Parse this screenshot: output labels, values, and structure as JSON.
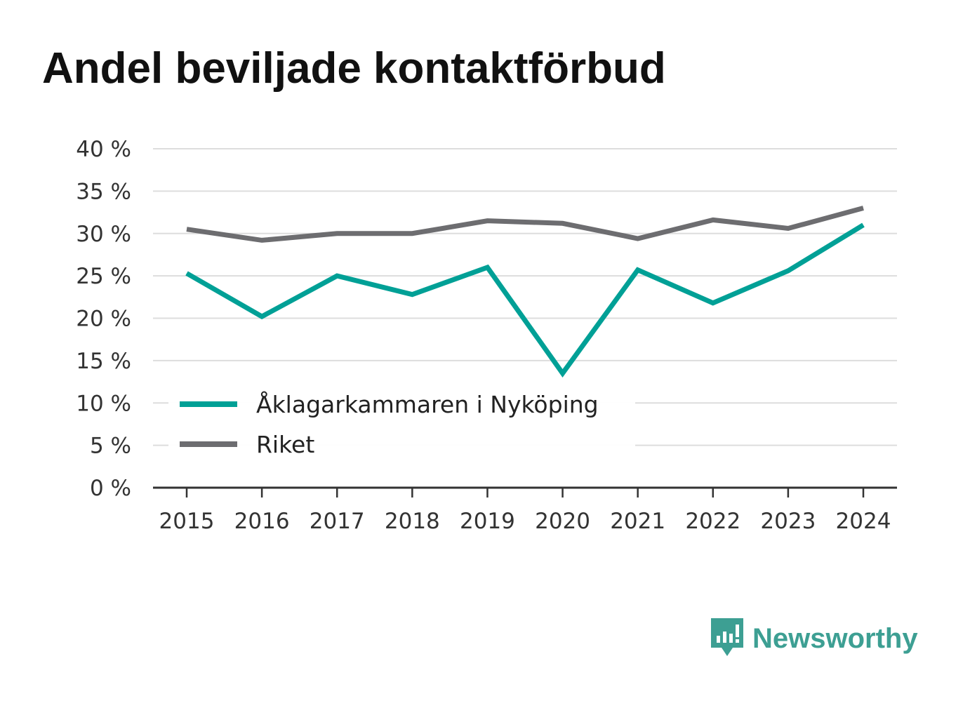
{
  "title": "Andel beviljade kontaktförbud",
  "brand": {
    "name": "Newsworthy",
    "icon": "newsworthy-logo-icon",
    "color": "#3d9f93"
  },
  "chart_data": {
    "type": "line",
    "x": [
      "2015",
      "2016",
      "2017",
      "2018",
      "2019",
      "2020",
      "2021",
      "2022",
      "2023",
      "2024"
    ],
    "series": [
      {
        "name": "Åklagarkammaren i Nyköping",
        "color": "#00a096",
        "values": [
          25.3,
          20.2,
          25.0,
          22.8,
          26.0,
          13.5,
          25.7,
          21.8,
          25.6,
          31.0
        ]
      },
      {
        "name": "Riket",
        "color": "#6d6d70",
        "values": [
          30.5,
          29.2,
          30.0,
          30.0,
          31.5,
          31.2,
          29.4,
          31.6,
          30.6,
          33.0
        ]
      }
    ],
    "yticks": [
      "0 %",
      "5 %",
      "10 %",
      "15 %",
      "20 %",
      "25 %",
      "30 %",
      "35 %",
      "40 %"
    ],
    "ylim": [
      0,
      40
    ],
    "grid": true,
    "legend_position": "lower-left"
  }
}
